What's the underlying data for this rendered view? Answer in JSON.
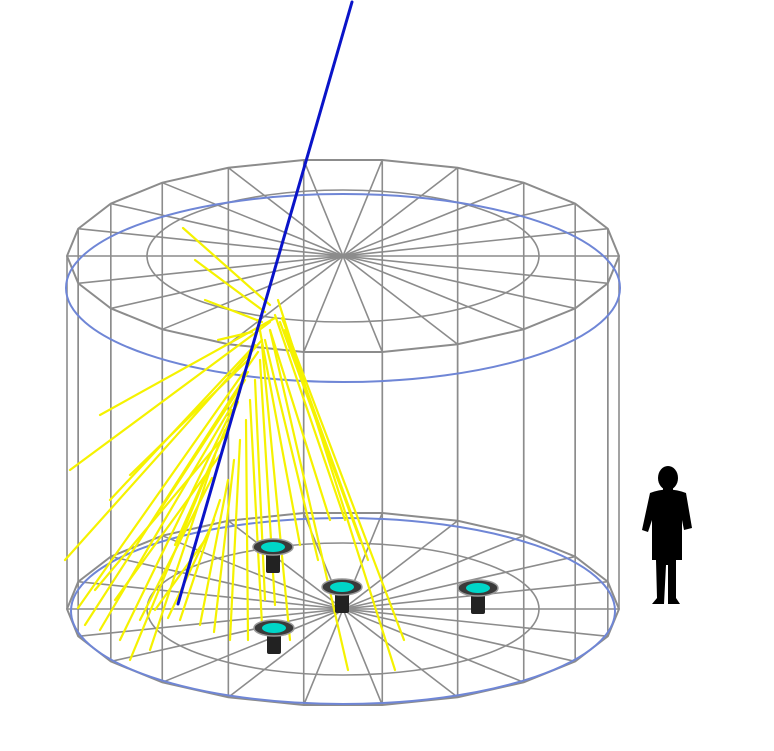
{
  "diagram": {
    "colors": {
      "frame": "#8c8c8c",
      "ring": "#6f86d6",
      "muon_track": "#0a14c8",
      "cherenkov_light": "#f5f200",
      "pmt_body": "#222222",
      "pmt_face": "#00d6c8",
      "person": "#000000"
    },
    "icons": {
      "pmt": "photomultiplier-tube-icon",
      "person": "person-silhouette-icon"
    },
    "tank": {
      "segments": 22
    },
    "pmt_count": 4,
    "light_ray_count": 40
  }
}
